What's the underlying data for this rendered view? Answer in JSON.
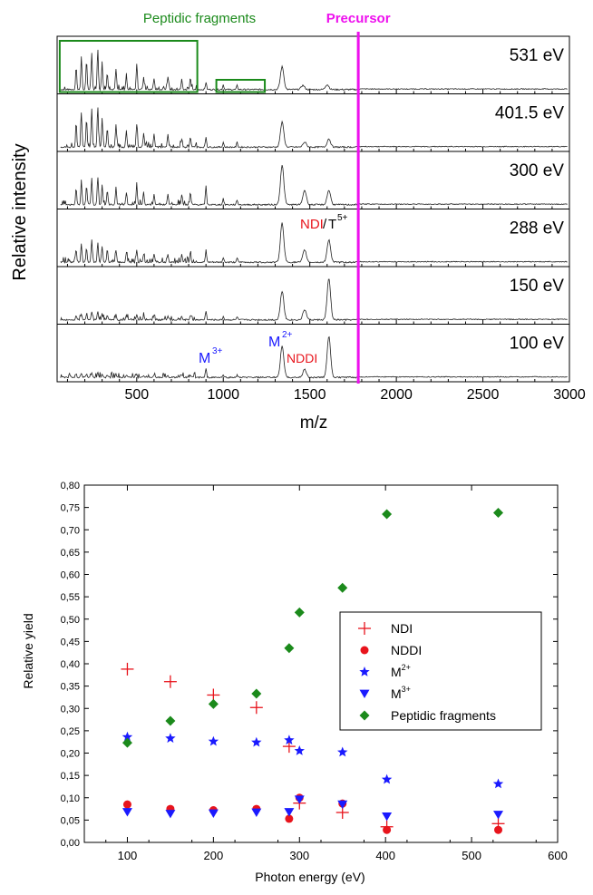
{
  "chart_data": [
    {
      "type": "line",
      "xlabel": "m/z",
      "ylabel": "Relative intensity",
      "xlim": [
        40,
        3000
      ],
      "xticks": [
        "500",
        "1000",
        "1500",
        "2000",
        "2500",
        "3000"
      ],
      "xtick_values": [
        500,
        1000,
        1500,
        2000,
        2500,
        3000
      ],
      "grid": false,
      "annotations": {
        "peptidic": "Peptidic fragments",
        "precursor": "Precursor",
        "precursor_mz": 1780,
        "ndi": "NDI",
        "t5": "T",
        "t5_sup": "5+",
        "m3": "M",
        "m3_sup": "3+",
        "m2": "M",
        "m2_sup": "2+",
        "nddi": "NDDI"
      },
      "peptidic_boxes_mz": [
        [
          55,
          850
        ],
        [
          960,
          1240
        ]
      ],
      "series": [
        {
          "name": "531 eV",
          "peaks": [
            [
              150,
              0.55
            ],
            [
              180,
              0.8
            ],
            [
              210,
              0.7
            ],
            [
              240,
              0.9
            ],
            [
              275,
              0.95
            ],
            [
              300,
              0.65
            ],
            [
              330,
              0.4
            ],
            [
              380,
              0.5
            ],
            [
              440,
              0.35
            ],
            [
              500,
              0.55
            ],
            [
              540,
              0.3
            ],
            [
              600,
              0.25
            ],
            [
              680,
              0.3
            ],
            [
              760,
              0.25
            ],
            [
              810,
              0.3
            ],
            [
              900,
              0.18
            ],
            [
              1000,
              0.12
            ],
            [
              1080,
              0.1
            ],
            [
              1340,
              0.55
            ],
            [
              1460,
              0.1
            ],
            [
              1600,
              0.12
            ]
          ]
        },
        {
          "name": "401.5 eV",
          "peaks": [
            [
              150,
              0.6
            ],
            [
              180,
              0.85
            ],
            [
              210,
              0.7
            ],
            [
              240,
              0.95
            ],
            [
              275,
              1.0
            ],
            [
              300,
              0.7
            ],
            [
              330,
              0.45
            ],
            [
              380,
              0.55
            ],
            [
              440,
              0.4
            ],
            [
              500,
              0.55
            ],
            [
              540,
              0.35
            ],
            [
              600,
              0.3
            ],
            [
              680,
              0.3
            ],
            [
              760,
              0.2
            ],
            [
              810,
              0.25
            ],
            [
              900,
              0.25
            ],
            [
              1000,
              0.12
            ],
            [
              1080,
              0.12
            ],
            [
              1340,
              0.6
            ],
            [
              1470,
              0.12
            ],
            [
              1610,
              0.2
            ]
          ]
        },
        {
          "name": "300 eV",
          "peaks": [
            [
              150,
              0.4
            ],
            [
              180,
              0.55
            ],
            [
              210,
              0.45
            ],
            [
              240,
              0.65
            ],
            [
              275,
              0.7
            ],
            [
              300,
              0.5
            ],
            [
              330,
              0.35
            ],
            [
              380,
              0.4
            ],
            [
              440,
              0.3
            ],
            [
              500,
              0.45
            ],
            [
              540,
              0.3
            ],
            [
              600,
              0.25
            ],
            [
              680,
              0.25
            ],
            [
              760,
              0.25
            ],
            [
              810,
              0.3
            ],
            [
              900,
              0.45
            ],
            [
              1000,
              0.15
            ],
            [
              1080,
              0.12
            ],
            [
              1340,
              0.95
            ],
            [
              1470,
              0.35
            ],
            [
              1610,
              0.35
            ]
          ]
        },
        {
          "name": "288 eV",
          "peaks": [
            [
              150,
              0.3
            ],
            [
              180,
              0.45
            ],
            [
              210,
              0.35
            ],
            [
              240,
              0.55
            ],
            [
              275,
              0.5
            ],
            [
              300,
              0.4
            ],
            [
              330,
              0.3
            ],
            [
              380,
              0.3
            ],
            [
              440,
              0.25
            ],
            [
              500,
              0.3
            ],
            [
              540,
              0.2
            ],
            [
              600,
              0.2
            ],
            [
              680,
              0.2
            ],
            [
              760,
              0.2
            ],
            [
              810,
              0.2
            ],
            [
              900,
              0.3
            ],
            [
              1000,
              0.12
            ],
            [
              1080,
              0.12
            ],
            [
              1340,
              0.95
            ],
            [
              1470,
              0.3
            ],
            [
              1610,
              0.55
            ]
          ]
        },
        {
          "name": "150 eV",
          "peaks": [
            [
              150,
              0.1
            ],
            [
              180,
              0.15
            ],
            [
              210,
              0.12
            ],
            [
              240,
              0.2
            ],
            [
              275,
              0.2
            ],
            [
              300,
              0.15
            ],
            [
              330,
              0.1
            ],
            [
              380,
              0.12
            ],
            [
              440,
              0.1
            ],
            [
              500,
              0.12
            ],
            [
              540,
              0.1
            ],
            [
              600,
              0.1
            ],
            [
              680,
              0.1
            ],
            [
              760,
              0.1
            ],
            [
              810,
              0.1
            ],
            [
              900,
              0.22
            ],
            [
              1000,
              0.08
            ],
            [
              1080,
              0.08
            ],
            [
              1340,
              0.7
            ],
            [
              1470,
              0.25
            ],
            [
              1610,
              1.0
            ]
          ]
        },
        {
          "name": "100 eV",
          "peaks": [
            [
              150,
              0.08
            ],
            [
              180,
              0.1
            ],
            [
              210,
              0.08
            ],
            [
              240,
              0.1
            ],
            [
              275,
              0.12
            ],
            [
              300,
              0.08
            ],
            [
              330,
              0.06
            ],
            [
              380,
              0.08
            ],
            [
              440,
              0.06
            ],
            [
              500,
              0.08
            ],
            [
              540,
              0.06
            ],
            [
              600,
              0.06
            ],
            [
              680,
              0.06
            ],
            [
              760,
              0.06
            ],
            [
              810,
              0.06
            ],
            [
              900,
              0.22
            ],
            [
              1000,
              0.06
            ],
            [
              1080,
              0.06
            ],
            [
              1340,
              0.75
            ],
            [
              1470,
              0.2
            ],
            [
              1610,
              1.0
            ]
          ]
        }
      ]
    },
    {
      "type": "scatter",
      "xlabel": "Photon energy (eV)",
      "ylabel": "Relative yield",
      "xlim": [
        50,
        600
      ],
      "ylim": [
        0,
        0.8
      ],
      "xticks": [
        "100",
        "200",
        "300",
        "400",
        "500",
        "600"
      ],
      "xtick_values": [
        100,
        200,
        300,
        400,
        500,
        600
      ],
      "yticks": [
        "0,00",
        "0,05",
        "0,10",
        "0,15",
        "0,20",
        "0,25",
        "0,30",
        "0,35",
        "0,40",
        "0,45",
        "0,50",
        "0,55",
        "0,60",
        "0,65",
        "0,70",
        "0,75",
        "0,80"
      ],
      "ytick_values": [
        0,
        0.05,
        0.1,
        0.15,
        0.2,
        0.25,
        0.3,
        0.35,
        0.4,
        0.45,
        0.5,
        0.55,
        0.6,
        0.65,
        0.7,
        0.75,
        0.8
      ],
      "grid": false,
      "legend": "center-right",
      "series": [
        {
          "name": "NDI",
          "sup": "",
          "marker": "plus",
          "color": "#e8141c",
          "points": [
            [
              100,
              0.388
            ],
            [
              150,
              0.36
            ],
            [
              200,
              0.33
            ],
            [
              250,
              0.302
            ],
            [
              288,
              0.215
            ],
            [
              300,
              0.088
            ],
            [
              350,
              0.067
            ],
            [
              401.5,
              0.035
            ],
            [
              531,
              0.042
            ]
          ]
        },
        {
          "name": "NDDI",
          "sup": "",
          "marker": "circle",
          "color": "#e8141c",
          "points": [
            [
              100,
              0.085
            ],
            [
              150,
              0.075
            ],
            [
              200,
              0.072
            ],
            [
              250,
              0.075
            ],
            [
              288,
              0.053
            ],
            [
              300,
              0.1
            ],
            [
              350,
              0.087
            ],
            [
              401.5,
              0.028
            ],
            [
              531,
              0.028
            ]
          ]
        },
        {
          "name": "M",
          "sup": "2+",
          "marker": "star",
          "color": "#1a1aff",
          "points": [
            [
              100,
              0.236
            ],
            [
              150,
              0.233
            ],
            [
              200,
              0.226
            ],
            [
              250,
              0.224
            ],
            [
              288,
              0.229
            ],
            [
              300,
              0.205
            ],
            [
              350,
              0.202
            ],
            [
              401.5,
              0.141
            ],
            [
              531,
              0.131
            ]
          ]
        },
        {
          "name": "M",
          "sup": "3+",
          "marker": "triangle-down",
          "color": "#1a1aff",
          "points": [
            [
              100,
              0.068
            ],
            [
              150,
              0.064
            ],
            [
              200,
              0.065
            ],
            [
              250,
              0.067
            ],
            [
              288,
              0.068
            ],
            [
              300,
              0.096
            ],
            [
              350,
              0.085
            ],
            [
              401.5,
              0.058
            ],
            [
              531,
              0.062
            ]
          ]
        },
        {
          "name": "Peptidic fragments",
          "sup": "",
          "marker": "diamond",
          "color": "#1b8a1b",
          "points": [
            [
              100,
              0.223
            ],
            [
              150,
              0.272
            ],
            [
              200,
              0.31
            ],
            [
              250,
              0.333
            ],
            [
              288,
              0.435
            ],
            [
              300,
              0.515
            ],
            [
              350,
              0.57
            ],
            [
              401.5,
              0.735
            ],
            [
              531,
              0.738
            ]
          ]
        }
      ]
    }
  ]
}
